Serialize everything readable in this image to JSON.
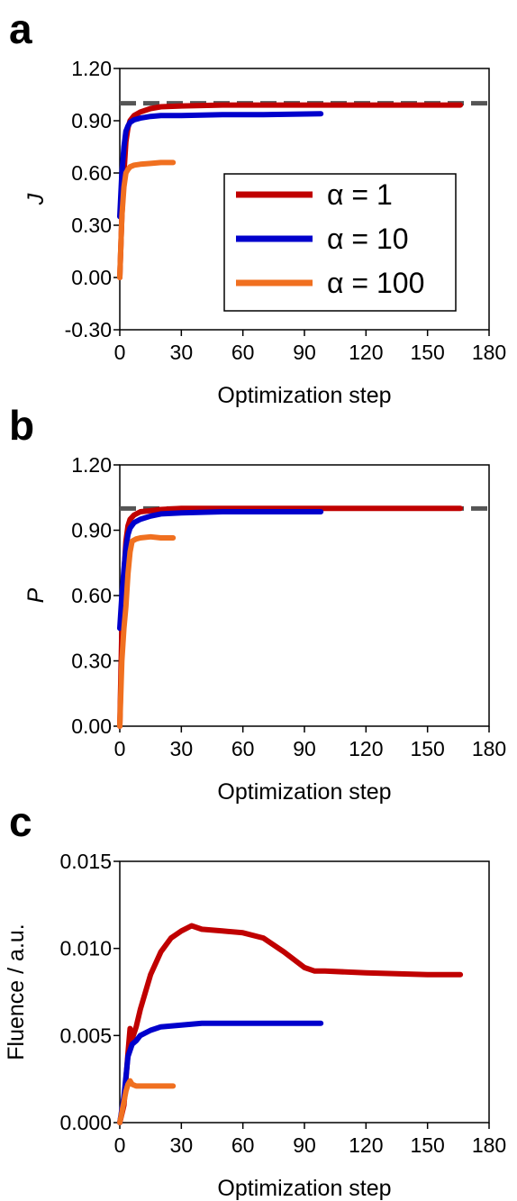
{
  "figure": {
    "panels": [
      {
        "label": "a",
        "xlabel": "Optimization step",
        "ylabel": "J",
        "legend": [
          {
            "text": "α = 1",
            "color": "#c00000"
          },
          {
            "text": "α = 10",
            "color": "#0000cc"
          },
          {
            "text": "α = 100",
            "color": "#f07020"
          }
        ]
      },
      {
        "label": "b",
        "xlabel": "Optimization step",
        "ylabel": "P"
      },
      {
        "label": "c",
        "xlabel": "Optimization step",
        "ylabel": "Fluence / a.u."
      }
    ]
  },
  "chart_data": [
    {
      "type": "line",
      "xlabel": "Optimization step",
      "ylabel": "J",
      "xlim": [
        0,
        180
      ],
      "ylim": [
        -0.3,
        1.2
      ],
      "xticks": [
        "0",
        "30",
        "60",
        "90",
        "120",
        "150",
        "180"
      ],
      "yticks": [
        "-0.30",
        "0.00",
        "0.30",
        "0.60",
        "0.90",
        "1.20"
      ],
      "yticks_values": [
        -0.3,
        0.0,
        0.3,
        0.6,
        0.9,
        1.2
      ],
      "legend_position": "center-right",
      "reference_line": {
        "y": 1.0,
        "style": "dashed",
        "color": "#555555"
      },
      "series": [
        {
          "name": "α = 1",
          "color": "#c00000",
          "x": [
            0,
            1,
            2,
            3,
            4,
            5,
            7,
            10,
            15,
            20,
            30,
            50,
            100,
            166
          ],
          "y": [
            0.0,
            0.35,
            0.6,
            0.78,
            0.86,
            0.9,
            0.93,
            0.95,
            0.97,
            0.98,
            0.985,
            0.99,
            0.99,
            0.99
          ]
        },
        {
          "name": "α = 10",
          "color": "#0000cc",
          "x": [
            0,
            1,
            2,
            3,
            4,
            5,
            7,
            10,
            15,
            20,
            30,
            50,
            70,
            98
          ],
          "y": [
            0.35,
            0.6,
            0.75,
            0.84,
            0.87,
            0.89,
            0.905,
            0.915,
            0.925,
            0.93,
            0.93,
            0.935,
            0.935,
            0.94
          ]
        },
        {
          "name": "α = 100",
          "color": "#f07020",
          "x": [
            0,
            1,
            2,
            3,
            4,
            5,
            7,
            10,
            15,
            20,
            26
          ],
          "y": [
            0.0,
            0.35,
            0.52,
            0.6,
            0.62,
            0.635,
            0.645,
            0.65,
            0.655,
            0.66,
            0.66
          ]
        }
      ]
    },
    {
      "type": "line",
      "xlabel": "Optimization step",
      "ylabel": "P",
      "xlim": [
        0,
        180
      ],
      "ylim": [
        0.0,
        1.2
      ],
      "xticks": [
        "0",
        "30",
        "60",
        "90",
        "120",
        "150",
        "180"
      ],
      "yticks": [
        "0.00",
        "0.30",
        "0.60",
        "0.90",
        "1.20"
      ],
      "yticks_values": [
        0.0,
        0.3,
        0.6,
        0.9,
        1.2
      ],
      "reference_line": {
        "y": 1.0,
        "style": "dashed",
        "color": "#555555"
      },
      "series": [
        {
          "name": "α = 1",
          "color": "#c00000",
          "x": [
            0,
            1,
            2,
            3,
            4,
            5,
            7,
            10,
            15,
            20,
            30,
            60,
            100,
            166
          ],
          "y": [
            0.0,
            0.45,
            0.7,
            0.85,
            0.92,
            0.95,
            0.97,
            0.985,
            0.99,
            0.995,
            1.0,
            1.0,
            1.0,
            1.0
          ]
        },
        {
          "name": "α = 10",
          "color": "#0000cc",
          "x": [
            0,
            1,
            2,
            3,
            4,
            5,
            7,
            10,
            15,
            20,
            30,
            50,
            70,
            98
          ],
          "y": [
            0.45,
            0.6,
            0.72,
            0.82,
            0.88,
            0.91,
            0.935,
            0.95,
            0.965,
            0.975,
            0.98,
            0.985,
            0.985,
            0.985
          ]
        },
        {
          "name": "α = 100",
          "color": "#f07020",
          "x": [
            0,
            1,
            2,
            3,
            4,
            5,
            6,
            8,
            10,
            15,
            20,
            26
          ],
          "y": [
            0.0,
            0.3,
            0.45,
            0.55,
            0.7,
            0.8,
            0.85,
            0.86,
            0.865,
            0.87,
            0.865,
            0.865
          ]
        }
      ]
    },
    {
      "type": "line",
      "xlabel": "Optimization step",
      "ylabel": "Fluence / a.u.",
      "xlim": [
        0,
        180
      ],
      "ylim": [
        0.0,
        0.015
      ],
      "xticks": [
        "0",
        "30",
        "60",
        "90",
        "120",
        "150",
        "180"
      ],
      "yticks": [
        "0.000",
        "0.005",
        "0.010",
        "0.015"
      ],
      "yticks_values": [
        0.0,
        0.005,
        0.01,
        0.015
      ],
      "series": [
        {
          "name": "α = 1",
          "color": "#c00000",
          "x": [
            0,
            2,
            4,
            5,
            6,
            8,
            10,
            15,
            20,
            25,
            30,
            35,
            40,
            50,
            60,
            70,
            80,
            90,
            95,
            100,
            120,
            150,
            166
          ],
          "y": [
            0.0,
            0.001,
            0.004,
            0.0054,
            0.0048,
            0.0055,
            0.0065,
            0.0085,
            0.0098,
            0.0106,
            0.011,
            0.0113,
            0.0111,
            0.011,
            0.0109,
            0.0106,
            0.0098,
            0.0089,
            0.0087,
            0.0087,
            0.0086,
            0.0085,
            0.0085
          ]
        },
        {
          "name": "α = 10",
          "color": "#0000cc",
          "x": [
            0,
            2,
            4,
            6,
            8,
            10,
            15,
            20,
            30,
            40,
            50,
            60,
            70,
            80,
            90,
            98
          ],
          "y": [
            0.0,
            0.0015,
            0.0038,
            0.0045,
            0.0047,
            0.005,
            0.0053,
            0.0055,
            0.0056,
            0.0057,
            0.0057,
            0.0057,
            0.0057,
            0.0057,
            0.0057,
            0.0057
          ]
        },
        {
          "name": "α = 100",
          "color": "#f07020",
          "x": [
            0,
            1,
            2,
            3,
            4,
            5,
            6,
            8,
            10,
            15,
            20,
            26
          ],
          "y": [
            0.0,
            0.0006,
            0.0012,
            0.0018,
            0.0022,
            0.0024,
            0.0022,
            0.0021,
            0.0021,
            0.0021,
            0.0021,
            0.0021
          ]
        }
      ]
    }
  ]
}
